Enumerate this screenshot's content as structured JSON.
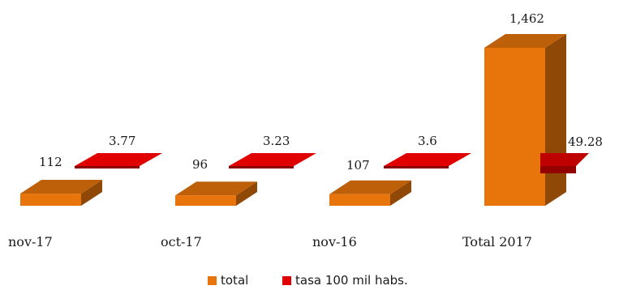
{
  "chart_data": {
    "type": "bar",
    "categories": [
      "nov-17",
      "oct-17",
      "nov-16",
      "Total 2017"
    ],
    "series": [
      {
        "name": "total",
        "values": [
          112,
          96,
          107,
          1462
        ],
        "labels": [
          "112",
          "96",
          "107",
          "1,462"
        ],
        "color": "#e8740c"
      },
      {
        "name": "tasa 100 mil habs.",
        "values": [
          3.77,
          3.23,
          3.6,
          49.28
        ],
        "labels": [
          "3.77",
          "3.23",
          "3.6",
          "49.28"
        ],
        "color": "#e00000"
      }
    ],
    "title": "",
    "xlabel": "",
    "ylabel": "",
    "legend": "bottom",
    "grid": false,
    "style": "3d-bar"
  }
}
